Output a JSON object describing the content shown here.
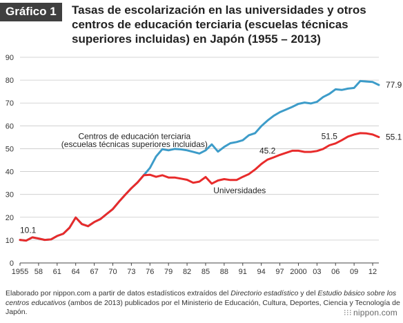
{
  "header": {
    "badge": "Gráfico 1",
    "title": "Tasas de escolarización en las universidades y otros centros de educación terciaria (escuelas técnicas superiores incluidas) en Japón (1955 – 2013)"
  },
  "chart_data": {
    "type": "line",
    "title": "Tasas de escolarización en las universidades y otros centros de educación terciaria (escuelas técnicas superiores incluidas) en Japón (1955 – 2013)",
    "xlabel": "",
    "ylabel": "",
    "xlim": [
      1955,
      2013
    ],
    "ylim": [
      0,
      90
    ],
    "y_ticks": [
      0,
      10,
      20,
      30,
      40,
      50,
      60,
      70,
      80,
      90
    ],
    "x_tick_values": [
      1955,
      1958,
      1961,
      1964,
      1967,
      1970,
      1973,
      1976,
      1979,
      1982,
      1985,
      1988,
      1991,
      1994,
      1997,
      2000,
      2003,
      2006,
      2009,
      2012
    ],
    "x_tick_labels": [
      "1955",
      "58",
      "61",
      "64",
      "67",
      "70",
      "73",
      "76",
      "79",
      "82",
      "85",
      "88",
      "91",
      "94",
      "97",
      "2000",
      "03",
      "06",
      "09",
      "12"
    ],
    "grid": true,
    "x": [
      1955,
      1956,
      1957,
      1958,
      1959,
      1960,
      1961,
      1962,
      1963,
      1964,
      1965,
      1966,
      1967,
      1968,
      1969,
      1970,
      1971,
      1972,
      1973,
      1974,
      1975,
      1976,
      1977,
      1978,
      1979,
      1980,
      1981,
      1982,
      1983,
      1984,
      1985,
      1986,
      1987,
      1988,
      1989,
      1990,
      1991,
      1992,
      1993,
      1994,
      1995,
      1996,
      1997,
      1998,
      1999,
      2000,
      2001,
      2002,
      2003,
      2004,
      2005,
      2006,
      2007,
      2008,
      2009,
      2010,
      2011,
      2012,
      2013
    ],
    "series": [
      {
        "name": "Centros de educación terciaria (escuelas técnicas superiores incluidas)",
        "color": "#3d9cc9",
        "values": [
          10.1,
          9.8,
          11.2,
          10.7,
          10.1,
          10.3,
          11.8,
          12.8,
          15.4,
          19.9,
          17.0,
          16.1,
          17.9,
          19.2,
          21.4,
          23.6,
          26.8,
          29.8,
          32.7,
          35.2,
          38.4,
          41.6,
          46.6,
          49.8,
          49.3,
          49.9,
          49.7,
          49.3,
          48.6,
          47.9,
          49.3,
          51.9,
          48.7,
          50.8,
          52.4,
          52.9,
          53.7,
          55.9,
          56.8,
          59.9,
          62.3,
          64.4,
          66.0,
          67.1,
          68.3,
          69.6,
          70.2,
          69.8,
          70.5,
          72.6,
          74.0,
          76.0,
          75.7,
          76.3,
          76.6,
          79.6,
          79.4,
          79.2,
          77.9
        ]
      },
      {
        "name": "Universidades",
        "color": "#e82b2b",
        "values": [
          10.1,
          9.8,
          11.2,
          10.7,
          10.1,
          10.3,
          11.8,
          12.8,
          15.4,
          19.9,
          17.0,
          16.1,
          17.9,
          19.2,
          21.4,
          23.6,
          26.8,
          29.8,
          32.7,
          35.2,
          38.4,
          38.6,
          37.7,
          38.4,
          37.4,
          37.4,
          36.9,
          36.4,
          35.1,
          35.6,
          37.6,
          34.7,
          36.1,
          36.7,
          36.3,
          36.3,
          37.7,
          38.9,
          40.9,
          43.3,
          45.2,
          46.2,
          47.3,
          48.2,
          49.1,
          49.1,
          48.6,
          48.6,
          49.0,
          49.9,
          51.5,
          52.3,
          53.7,
          55.3,
          56.2,
          56.8,
          56.7,
          56.2,
          55.1
        ]
      }
    ],
    "annotations": [
      {
        "id": "ann_1955",
        "text": "10.1",
        "x": 1955,
        "y": 10.1
      },
      {
        "id": "ann_1995",
        "text": "45.2",
        "x": 1995,
        "y": 45.2
      },
      {
        "id": "ann_2005",
        "text": "51.5",
        "x": 2005,
        "y": 51.5
      },
      {
        "id": "ann_end_univ",
        "text": "55.1",
        "x": 2013,
        "y": 55.1
      },
      {
        "id": "ann_end_terc",
        "text": "77.9",
        "x": 2013,
        "y": 77.9
      }
    ],
    "series_labels": [
      {
        "line1": "Centros de educación terciaria",
        "line2": "(escuelas técnicas superiores incluidas)"
      },
      {
        "line1": "Universidades"
      }
    ]
  },
  "footer": {
    "p1": "Elaborado por nippon.com a partir de datos estadísticos extraídos del ",
    "i1": "Directorio estadístico",
    "p2": " y del ",
    "i2": "Estudio básico sobre los centros educativos",
    "p3": " (ambos de 2013) publicados por el Ministerio de Educación, Cultura, Deportes, Ciencia y Tecnología de Japón."
  },
  "logo": {
    "text": "nippon.com",
    "icon": "dots-icon"
  }
}
